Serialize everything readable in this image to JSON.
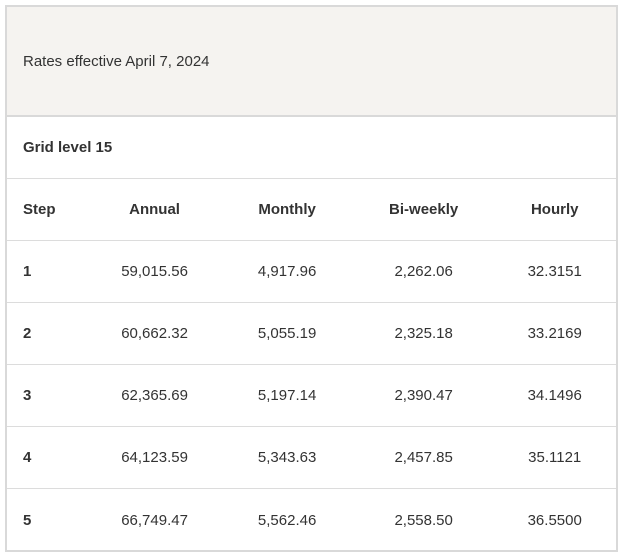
{
  "caption": "Rates effective April 7, 2024",
  "grid_level": "Grid level 15",
  "columns": [
    "Step",
    "Annual",
    "Monthly",
    "Bi-weekly",
    "Hourly"
  ],
  "rows": [
    [
      "1",
      "59,015.56",
      "4,917.96",
      "2,262.06",
      "32.3151"
    ],
    [
      "2",
      "60,662.32",
      "5,055.19",
      "2,325.18",
      "33.2169"
    ],
    [
      "3",
      "62,365.69",
      "5,197.14",
      "2,390.47",
      "34.1496"
    ],
    [
      "4",
      "64,123.59",
      "5,343.63",
      "2,457.85",
      "35.1121"
    ],
    [
      "5",
      "66,749.47",
      "5,562.46",
      "2,558.50",
      "36.5500"
    ]
  ]
}
